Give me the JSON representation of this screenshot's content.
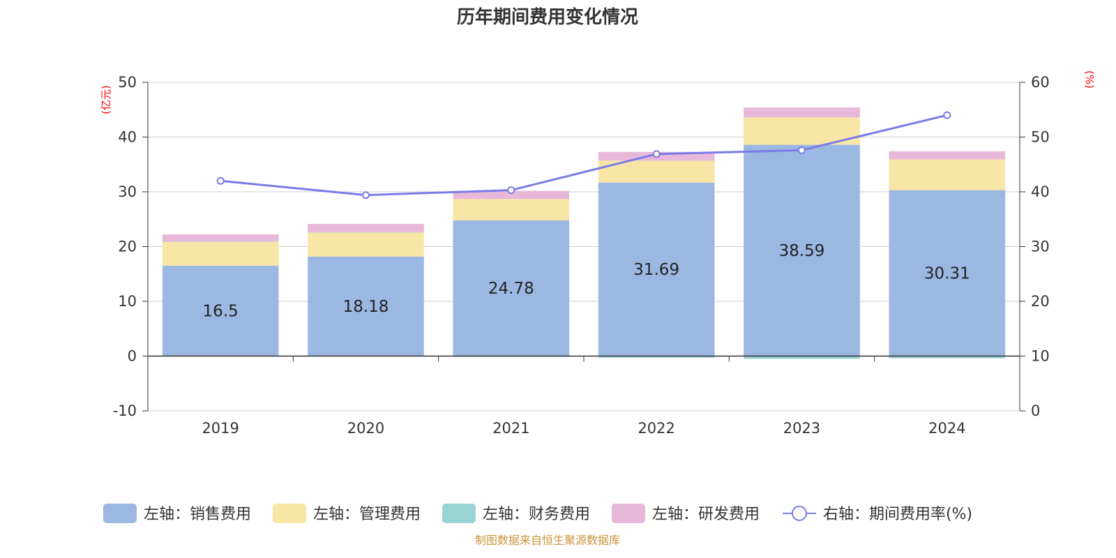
{
  "chart_data": {
    "type": "bar",
    "title": "历年期间费用变化情况",
    "categories": [
      "2019",
      "2020",
      "2021",
      "2022",
      "2023",
      "2024"
    ],
    "left_axis": {
      "unit": "(亿元)",
      "ylim": [
        -10,
        50
      ],
      "ticks": [
        -10,
        0,
        10,
        20,
        30,
        40,
        50
      ]
    },
    "right_axis": {
      "unit": "(%)",
      "ylim": [
        0,
        60
      ],
      "ticks": [
        0,
        10,
        20,
        30,
        40,
        50,
        60
      ]
    },
    "series": [
      {
        "name": "左轴：销售费用",
        "type": "bar",
        "axis": "left",
        "color": "#9bb8e2",
        "values": [
          16.5,
          18.18,
          24.78,
          31.69,
          38.59,
          30.31
        ],
        "show_labels": true
      },
      {
        "name": "左轴：管理费用",
        "type": "bar",
        "axis": "left",
        "color": "#f8e6a6",
        "values": [
          4.4,
          4.4,
          3.9,
          4.0,
          5.0,
          5.6
        ]
      },
      {
        "name": "左轴：财务费用",
        "type": "bar",
        "axis": "left",
        "color": "#99d4d4",
        "values": [
          0.02,
          0.05,
          -0.15,
          -0.3,
          -0.5,
          -0.4
        ]
      },
      {
        "name": "左轴：研发费用",
        "type": "bar",
        "axis": "left",
        "color": "#e8b8d8",
        "values": [
          1.3,
          1.5,
          1.5,
          1.6,
          1.8,
          1.5
        ]
      },
      {
        "name": "右轴：期间费用率(%)",
        "type": "line",
        "axis": "right",
        "color": "#7b7be8",
        "values": [
          42.0,
          39.4,
          40.3,
          46.9,
          47.6,
          54.0
        ]
      }
    ],
    "grid": true,
    "legend_position": "bottom"
  },
  "source_note": "制图数据来自恒生聚源数据库"
}
